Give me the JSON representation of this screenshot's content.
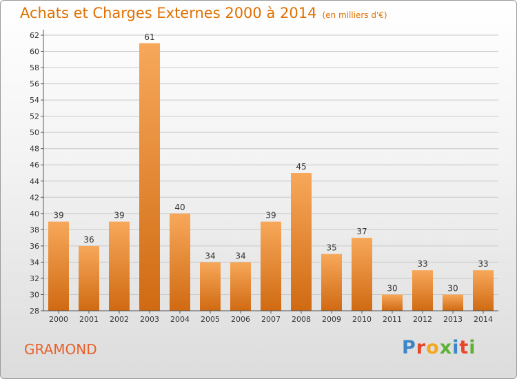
{
  "header": {
    "title": "Achats et Charges Externes 2000 à 2014",
    "unit": "(en milliers d'€)"
  },
  "footer": {
    "commune": "GRAMOND",
    "logo_text": "Proxiti"
  },
  "colors": {
    "title": "#e07000",
    "bar_top": "#f7a85a",
    "bar_bottom": "#d06a12",
    "grid": "#c8c8c8",
    "axis": "#555555",
    "commune": "#e8602a"
  },
  "chart_data": {
    "type": "bar",
    "title": "Achats et Charges Externes 2000 à 2014",
    "subtitle": "(en milliers d'€)",
    "categories": [
      "2000",
      "2001",
      "2002",
      "2003",
      "2004",
      "2005",
      "2006",
      "2007",
      "2008",
      "2009",
      "2010",
      "2011",
      "2012",
      "2013",
      "2014"
    ],
    "values": [
      39,
      36,
      39,
      61,
      40,
      34,
      34,
      39,
      45,
      35,
      37,
      30,
      33,
      30,
      33
    ],
    "ylim": [
      28,
      62
    ],
    "yticks": [
      28,
      30,
      32,
      34,
      36,
      38,
      40,
      42,
      44,
      46,
      48,
      50,
      52,
      54,
      56,
      58,
      60,
      62
    ],
    "grid": true,
    "data_labels": true
  }
}
